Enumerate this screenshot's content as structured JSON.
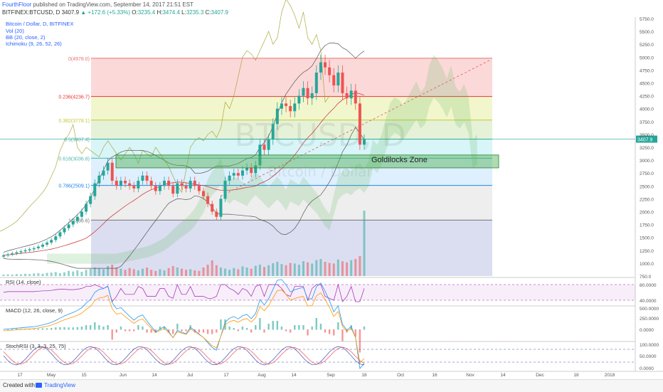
{
  "header": {
    "author": "FourthFloor",
    "published_text": "published on TradingView.com, September 14, 2017 21:51 EST",
    "symbol_line": "BITFINEX:BTCUSD, D",
    "last": "3407.9",
    "change_arrow": "▲",
    "change": "+172.6 (+5.33%)",
    "o_label": "O:",
    "o_value": "3235.4",
    "h_label": "H:",
    "h_value": "3474.4",
    "l_label": "L:",
    "l_value": "3235.3",
    "c_label": "C:",
    "c_value": "3407.9"
  },
  "indicators": {
    "title": "Bitcoin / Dollar, D, BITFINEX",
    "vol": "Vol (20)",
    "bb": "BB (20, close, 2)",
    "ichimoku": "Ichimoku (9, 26, 52, 26)"
  },
  "watermark": {
    "symbol": "BTCUSD, D",
    "name": "Bitcoin / Dollar"
  },
  "annotation": {
    "goldilocks": "Goldilocks Zone"
  },
  "colors": {
    "up": "#26a69a",
    "down": "#ef5350",
    "accent": "#2962ff",
    "rsi": "#9c27b0"
  },
  "chart_data": {
    "type": "candlestick",
    "x_ticks": [
      "17",
      "May",
      "15",
      "Jun",
      "14",
      "Jul",
      "17",
      "Aug",
      "14",
      "Sep",
      "18",
      "Oct",
      "16",
      "Nov",
      "14",
      "Dec",
      "18",
      "2018"
    ],
    "y_ticks": [
      "5750.0",
      "5500.0",
      "5250.0",
      "5000.0",
      "4750.0",
      "4500.0",
      "4250.0",
      "4000.0",
      "3750.0",
      "3500.0",
      "3250.0",
      "3000.0",
      "2750.0",
      "2500.0",
      "2250.0",
      "2000.0",
      "1750.0",
      "1500.0",
      "1250.0",
      "1000.0",
      "750.0"
    ],
    "ylim": [
      750,
      5750
    ],
    "last_price_label": "3407.9",
    "fib_levels": [
      {
        "label": "0(4978.0)",
        "value": 4978.0
      },
      {
        "label": "0.236(4236.7)",
        "value": 4236.7
      },
      {
        "label": "0.382(3778.1)",
        "value": 3778.1
      },
      {
        "label": "0.5(3407.4)",
        "value": 3407.4
      },
      {
        "label": "0.618(3036.8)",
        "value": 3036.8
      },
      {
        "label": "0.786(2509.1)",
        "value": 2509.1
      },
      {
        "label": "1(1836.6)",
        "value": 1836.6
      }
    ],
    "goldilocks_zone": [
      2850,
      3100
    ],
    "price_path": [
      1150,
      1170,
      1190,
      1210,
      1230,
      1250,
      1270,
      1290,
      1320,
      1360,
      1400,
      1450,
      1520,
      1600,
      1680,
      1750,
      1820,
      1900,
      2000,
      2150,
      2300,
      2550,
      2700,
      2800,
      2950,
      2600,
      2500,
      2600,
      2550,
      2500,
      2450,
      2600,
      2700,
      2600,
      2500,
      2400,
      2500,
      2600,
      2500,
      2350,
      2550,
      2500,
      2450,
      2600,
      2500,
      2400,
      2300,
      2150,
      2000,
      1900,
      2250,
      2600,
      2700,
      2750,
      2700,
      2800,
      2850,
      2750,
      2900,
      3300,
      3200,
      3400,
      3700,
      4000,
      4100,
      4050,
      3950,
      4100,
      4250,
      4400,
      4200,
      4300,
      4700,
      4900,
      4800,
      4650,
      4450,
      4700,
      4300,
      4200,
      4350,
      4100,
      3300,
      3400
    ],
    "volume_path": [
      5,
      6,
      5,
      7,
      6,
      8,
      7,
      9,
      10,
      8,
      11,
      12,
      14,
      10,
      13,
      18,
      16,
      20,
      15,
      22,
      25,
      30,
      28,
      24,
      35,
      40,
      30,
      26,
      22,
      28,
      24,
      20,
      26,
      30,
      22,
      18,
      24,
      20,
      28,
      35,
      30,
      26,
      22,
      24,
      20,
      18,
      30,
      40,
      55,
      38,
      30,
      26,
      22,
      28,
      24,
      34,
      30,
      26,
      36,
      40,
      32,
      38,
      45,
      50,
      42,
      38,
      46,
      44,
      40,
      52,
      48,
      44,
      56,
      60,
      50,
      46,
      44,
      58,
      52,
      48,
      56,
      60,
      70,
      230
    ],
    "rsi": {
      "label": "RSI (14, close)",
      "ticks": [
        "80.0000",
        "40.0000"
      ],
      "upper": 80,
      "lower": 40,
      "last": 40
    },
    "macd": {
      "label": "MACD (12, 26, close, 9)",
      "ticks": [
        "500.0000",
        "250.0000",
        "0.0000"
      ]
    },
    "stochrsi": {
      "label": "StochRSI (3, 3, 3, 25, 75)",
      "ticks": [
        "100.0000",
        "50.0000",
        "0.0000"
      ]
    }
  },
  "footer": {
    "created_with": "Created with",
    "brand": "TradingView"
  }
}
